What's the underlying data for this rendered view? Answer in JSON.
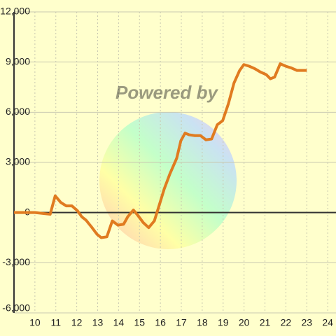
{
  "chart_data": {
    "type": "line",
    "watermark": "Powered by",
    "x": [
      9,
      10,
      10.73,
      10.97,
      11.24,
      11.5,
      11.77,
      12.04,
      12.24,
      12.44,
      12.7,
      12.97,
      13.17,
      13.44,
      13.7,
      13.97,
      14.24,
      14.44,
      14.71,
      14.91,
      15.18,
      15.44,
      15.71,
      15.91,
      16.18,
      16.45,
      16.78,
      16.98,
      17.18,
      17.38,
      17.65,
      17.92,
      18.18,
      18.45,
      18.72,
      18.98,
      19.25,
      19.52,
      19.79,
      19.99,
      20.25,
      20.52,
      20.79,
      21.06,
      21.26,
      21.46,
      21.73,
      22.0,
      22.26,
      22.53,
      22.8,
      23.0
    ],
    "series": [
      {
        "color": "#e07b20",
        "values": [
          0,
          0,
          -100,
          1000,
          600,
          400,
          400,
          100,
          -250,
          -450,
          -850,
          -1300,
          -1500,
          -1450,
          -500,
          -750,
          -700,
          -250,
          150,
          -150,
          -600,
          -900,
          -500,
          300,
          1400,
          2300,
          3250,
          4300,
          4750,
          4650,
          4600,
          4600,
          4350,
          4400,
          5250,
          5500,
          6500,
          7750,
          8500,
          8850,
          8750,
          8600,
          8400,
          8250,
          8000,
          8100,
          8900,
          8750,
          8650,
          8500,
          8500,
          8500
        ]
      }
    ],
    "xlim": [
      9,
      24.33
    ],
    "xticks": [
      10,
      11,
      12,
      13,
      14,
      15,
      16,
      17,
      18,
      19,
      20,
      21,
      22,
      23,
      24
    ],
    "ylim": [
      -6000,
      12000
    ],
    "yticks": [
      {
        "value": -6000,
        "label": "-6,000"
      },
      {
        "value": -3000,
        "label": "-3,000"
      },
      0,
      {
        "value": 3000,
        "label": "3,000"
      },
      {
        "value": 6000,
        "label": "6,000"
      },
      {
        "value": 9000,
        "label": "9,000"
      },
      {
        "value": 12000,
        "label": "12,000"
      }
    ],
    "grid": true
  }
}
